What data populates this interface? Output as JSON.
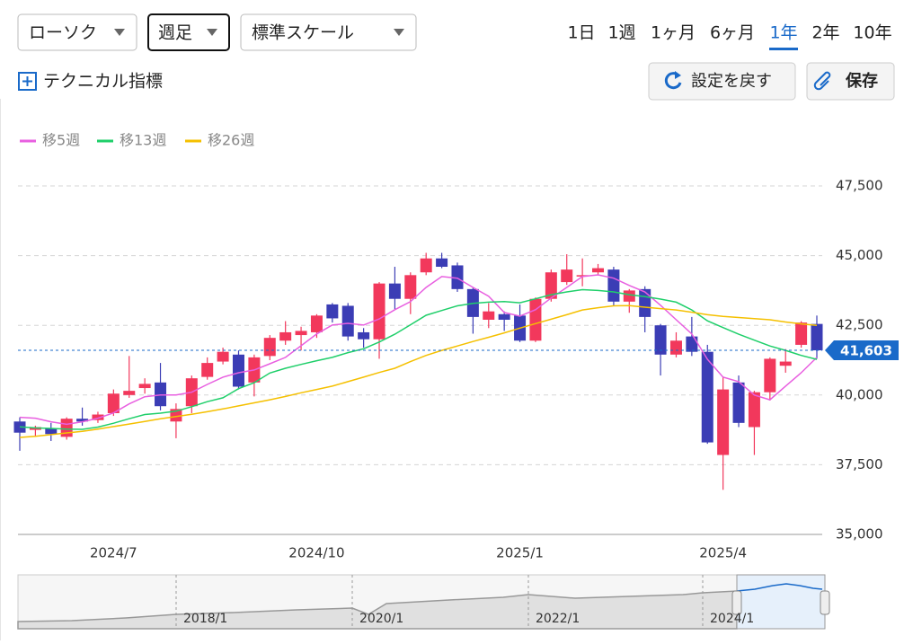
{
  "controls": {
    "chart_type": "ローソク",
    "interval": "週足",
    "scale": "標準スケール",
    "periods": [
      "1日",
      "1週",
      "1ヶ月",
      "6ヶ月",
      "1年",
      "2年",
      "10年"
    ],
    "selected_period": 4,
    "indicator": "テクニカル指標",
    "reset": "設定を戻す",
    "save": "保存"
  },
  "chart_data": {
    "type": "candlestick",
    "categories": [
      null,
      null,
      null,
      null,
      null,
      null,
      "2024/7",
      null,
      null,
      null,
      null,
      null,
      null,
      null,
      null,
      null,
      null,
      null,
      null,
      "2024/10",
      null,
      null,
      null,
      null,
      null,
      null,
      null,
      null,
      null,
      null,
      null,
      null,
      "2025/1",
      null,
      null,
      null,
      null,
      null,
      null,
      null,
      null,
      null,
      null,
      null,
      null,
      "2025/4",
      null,
      null,
      null,
      null,
      null,
      null
    ],
    "open": [
      39050,
      38750,
      38800,
      38500,
      39150,
      39100,
      39350,
      40000,
      40250,
      40450,
      39050,
      39600,
      40650,
      41200,
      41450,
      40450,
      41400,
      41950,
      42150,
      42250,
      43250,
      43200,
      42250,
      42000,
      44000,
      43450,
      44400,
      44900,
      44650,
      43800,
      42700,
      42900,
      42850,
      41950,
      43450,
      44050,
      44250,
      44400,
      44500,
      43350,
      43800,
      42500,
      41450,
      42100,
      41550,
      37850,
      40450,
      38850,
      40100,
      41050,
      41800,
      42550
    ],
    "high": [
      39200,
      38900,
      39000,
      39200,
      39550,
      39400,
      40200,
      41400,
      40600,
      41150,
      39700,
      40700,
      41350,
      41700,
      41600,
      41450,
      42150,
      42650,
      42450,
      42900,
      43300,
      43300,
      42400,
      44050,
      44600,
      44400,
      45100,
      45100,
      44750,
      43850,
      43300,
      43000,
      43250,
      43500,
      44500,
      45050,
      44900,
      44700,
      44600,
      43800,
      43900,
      42550,
      42250,
      42800,
      41800,
      40650,
      40700,
      40150,
      41350,
      41650,
      42650,
      42850
    ],
    "low": [
      38000,
      38500,
      38350,
      38400,
      38900,
      39000,
      39250,
      39900,
      40050,
      39450,
      38450,
      39350,
      40550,
      41100,
      40200,
      39950,
      41250,
      41800,
      41600,
      42050,
      42600,
      41950,
      41700,
      41300,
      43050,
      42900,
      44300,
      44550,
      43700,
      42200,
      42400,
      42300,
      41900,
      41900,
      43350,
      43950,
      43900,
      44300,
      43200,
      42950,
      42250,
      40700,
      41350,
      41400,
      38250,
      36600,
      38850,
      37850,
      39800,
      40800,
      41700,
      41300
    ],
    "close": [
      38650,
      38850,
      38600,
      39150,
      39050,
      39300,
      40050,
      40150,
      40400,
      39600,
      39500,
      40600,
      41150,
      41550,
      40300,
      41350,
      42050,
      42250,
      42300,
      42850,
      42750,
      42100,
      42000,
      44000,
      43450,
      44300,
      44900,
      44600,
      43800,
      42800,
      43000,
      42700,
      41950,
      43450,
      44400,
      44500,
      44300,
      44550,
      43350,
      43750,
      42800,
      41450,
      41950,
      41550,
      38300,
      40200,
      39000,
      40100,
      41300,
      41200,
      42600,
      41603
    ],
    "up_color": "#f2385c",
    "down_color": "#3b3db5",
    "series": [
      {
        "name": "移5週",
        "color": "#e85fe0",
        "values": [
          39200,
          39170,
          39040,
          38950,
          39040,
          39170,
          39360,
          39680,
          39940,
          40000,
          40000,
          40100,
          40380,
          40640,
          40800,
          40900,
          41120,
          41350,
          41770,
          42190,
          42510,
          42570,
          42510,
          42730,
          43060,
          43350,
          43860,
          44250,
          44190,
          43860,
          43540,
          42960,
          42830,
          43060,
          43480,
          43860,
          44250,
          44310,
          44190,
          43930,
          43700,
          43220,
          42700,
          42190,
          41280,
          40640,
          40480,
          40000,
          39830,
          40320,
          40800,
          41350
        ]
      },
      {
        "name": "移13週",
        "color": "#1fcf6a",
        "values": [
          38860,
          38820,
          38800,
          38780,
          38770,
          38850,
          38990,
          39150,
          39300,
          39350,
          39420,
          39580,
          39760,
          39900,
          40230,
          40440,
          40790,
          40960,
          41100,
          41230,
          41350,
          41520,
          41660,
          41900,
          42180,
          42520,
          42860,
          43030,
          43200,
          43290,
          43330,
          43350,
          43310,
          43450,
          43600,
          43700,
          43780,
          43750,
          43700,
          43600,
          43530,
          43440,
          43330,
          43050,
          42660,
          42420,
          42180,
          41970,
          41760,
          41600,
          41420,
          41280
        ]
      },
      {
        "name": "移26週",
        "color": "#f5c000",
        "values": [
          38480,
          38520,
          38580,
          38640,
          38700,
          38780,
          38870,
          38960,
          39050,
          39150,
          39230,
          39310,
          39400,
          39500,
          39610,
          39720,
          39830,
          39950,
          40080,
          40200,
          40320,
          40480,
          40640,
          40810,
          40960,
          41200,
          41420,
          41600,
          41760,
          41920,
          42070,
          42230,
          42400,
          42560,
          42720,
          42880,
          43050,
          43130,
          43200,
          43210,
          43150,
          43100,
          43050,
          42970,
          42880,
          42820,
          42780,
          42740,
          42700,
          42620,
          42550,
          42500
        ]
      }
    ],
    "ylim": [
      35000,
      47500
    ],
    "yticks": [
      {
        "value": 35000,
        "label": "35,000"
      },
      {
        "value": 37500,
        "label": "37,500"
      },
      {
        "value": 40000,
        "label": "40,000"
      },
      {
        "value": 42500,
        "label": "42,500"
      },
      {
        "value": 45000,
        "label": "45,000"
      },
      {
        "value": 47500,
        "label": "47,500"
      }
    ],
    "grid": true,
    "last_price": {
      "value": 41603,
      "label": "41,603"
    }
  },
  "navigator": {
    "labels": [
      "2018/1",
      "2020/1",
      "2022/1",
      "2024/1"
    ]
  }
}
